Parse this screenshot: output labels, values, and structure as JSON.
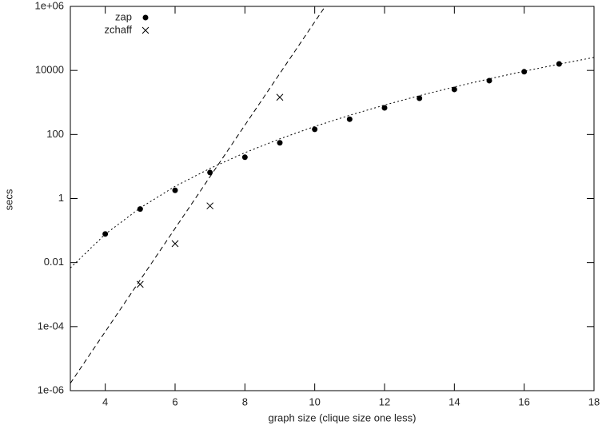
{
  "chart_data": {
    "type": "scatter",
    "x_label": "graph size (clique size one less)",
    "y_label": "secs",
    "log_y": true,
    "xlim": [
      3,
      18
    ],
    "xticks": [
      4,
      6,
      8,
      10,
      12,
      14,
      16,
      18
    ],
    "ylim": [
      1e-06,
      1000000
    ],
    "yticks": [
      {
        "value": 1e-06,
        "label": "1e-06"
      },
      {
        "value": 0.0001,
        "label": "1e-04"
      },
      0.01,
      1,
      100,
      10000,
      {
        "value": 1000000,
        "label": "1e+06"
      }
    ],
    "legend": "top-left",
    "series": [
      {
        "name": "zap",
        "marker": "circle",
        "color": "#000000",
        "x": [
          4,
          5,
          6,
          7,
          8,
          9,
          10,
          11,
          12,
          13,
          14,
          15,
          16,
          17
        ],
        "values": [
          0.078,
          0.47,
          1.8,
          6.5,
          19.5,
          55,
          145,
          300,
          680,
          1350,
          2550,
          4800,
          9100,
          16000
        ]
      },
      {
        "name": "zchaff",
        "marker": "cross",
        "color": "#000000",
        "x": [
          5,
          6,
          7,
          9
        ],
        "values": [
          0.0021,
          0.039,
          0.59,
          1450
        ]
      }
    ],
    "fits": [
      {
        "style": "dotted",
        "color": "#000000",
        "x": [
          3,
          4,
          5,
          6,
          7,
          8,
          9,
          10,
          11,
          12,
          13,
          14,
          15,
          16,
          17,
          18
        ],
        "values": [
          0.0068,
          0.077,
          0.51,
          2.4,
          8.7,
          27,
          73,
          178,
          398,
          830,
          1630,
          3050,
          5470,
          9440,
          15700,
          25500
        ]
      },
      {
        "style": "dashed",
        "color": "#000000",
        "x": [
          3,
          10.3
        ],
        "values": [
          1.7e-06,
          1000000
        ]
      }
    ]
  }
}
